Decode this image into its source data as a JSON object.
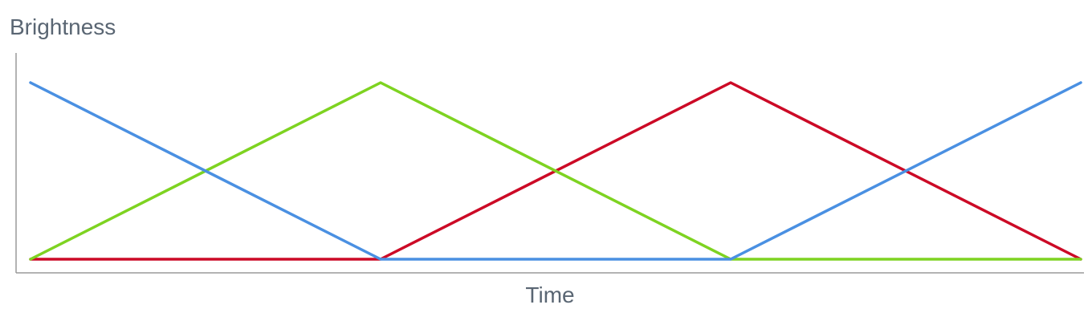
{
  "chart_data": {
    "type": "line",
    "title": "",
    "xlabel": "Time",
    "ylabel": "Brightness",
    "x": [
      0,
      1,
      2,
      3
    ],
    "ylim": [
      0,
      1
    ],
    "grid": false,
    "legend": "none",
    "series": [
      {
        "color": "#cc0a26",
        "values": [
          0,
          0,
          1,
          0
        ]
      },
      {
        "color": "#7ed321",
        "values": [
          0,
          1,
          0,
          0
        ]
      },
      {
        "color": "#4a90e2",
        "values": [
          1,
          0,
          0,
          1
        ]
      }
    ]
  }
}
